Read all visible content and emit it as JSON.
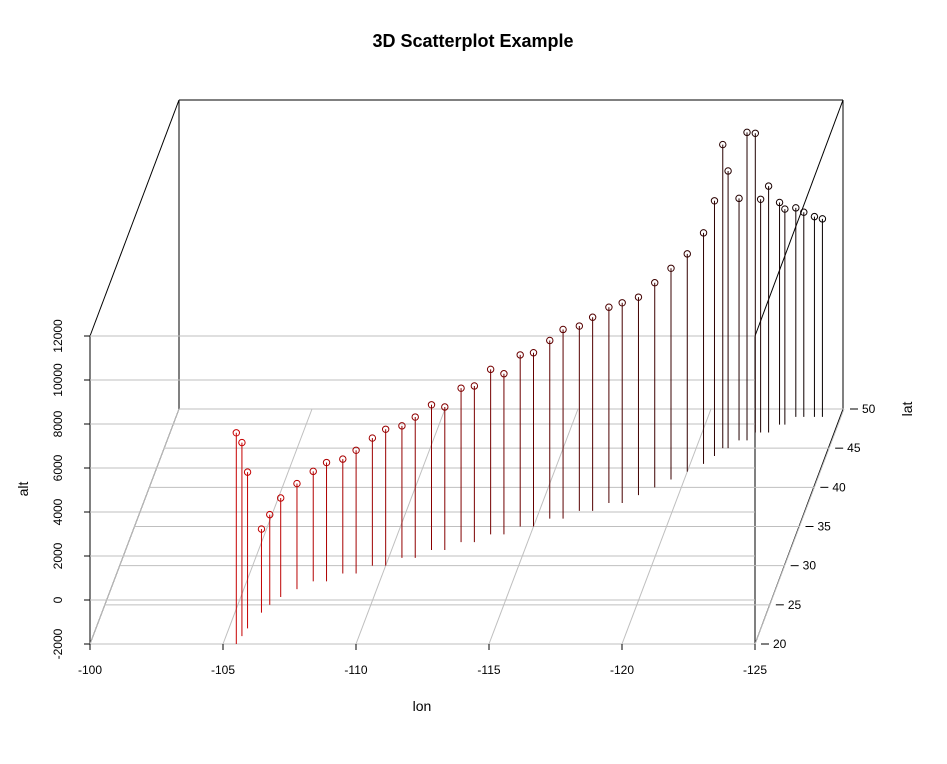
{
  "chart_data": {
    "type": "scatter",
    "title": "3D Scatterplot Example",
    "xlabel": "lon",
    "ylabel": "lat",
    "zlabel": "alt",
    "x_ticks": [
      -100,
      -105,
      -110,
      -115,
      -120,
      -125
    ],
    "y_ticks": [
      20,
      25,
      30,
      35,
      40,
      45,
      50
    ],
    "z_ticks": [
      -2000,
      0,
      2000,
      4000,
      6000,
      8000,
      10000,
      12000
    ],
    "x_range": [
      -100,
      -125
    ],
    "y_range": [
      20,
      50
    ],
    "z_range": [
      -2000,
      12000
    ],
    "grid": true,
    "drop_lines": true,
    "color_gradient": [
      "#ff0000",
      "#000000"
    ],
    "series": [
      {
        "points": [
          [
            -105.5,
            20,
            7600
          ],
          [
            -105.6,
            21,
            6800
          ],
          [
            -105.7,
            22,
            5100
          ],
          [
            -106.0,
            24,
            1800
          ],
          [
            -106.2,
            25,
            2100
          ],
          [
            -106.5,
            26,
            2500
          ],
          [
            -107.0,
            27,
            2800
          ],
          [
            -107.5,
            28,
            3000
          ],
          [
            -108.0,
            28,
            3400
          ],
          [
            -108.5,
            29,
            3200
          ],
          [
            -109.0,
            29,
            3600
          ],
          [
            -109.5,
            30,
            3800
          ],
          [
            -110.0,
            30,
            4200
          ],
          [
            -110.5,
            31,
            4000
          ],
          [
            -111.0,
            31,
            4400
          ],
          [
            -111.5,
            32,
            4600
          ],
          [
            -112.0,
            32,
            4500
          ],
          [
            -112.5,
            33,
            5000
          ],
          [
            -113.0,
            33,
            5100
          ],
          [
            -113.5,
            34,
            5500
          ],
          [
            -114.0,
            34,
            5300
          ],
          [
            -114.5,
            35,
            5800
          ],
          [
            -115.0,
            35,
            5900
          ],
          [
            -115.5,
            36,
            6100
          ],
          [
            -116.0,
            36,
            6600
          ],
          [
            -116.5,
            37,
            6400
          ],
          [
            -117.0,
            37,
            6800
          ],
          [
            -117.5,
            38,
            6900
          ],
          [
            -118.0,
            38,
            7100
          ],
          [
            -118.5,
            39,
            7000
          ],
          [
            -119.0,
            40,
            7300
          ],
          [
            -119.5,
            41,
            7600
          ],
          [
            -120.0,
            42,
            7900
          ],
          [
            -120.5,
            43,
            8500
          ],
          [
            -120.8,
            44,
            9600
          ],
          [
            -121.0,
            45,
            11800
          ],
          [
            -121.2,
            45,
            10600
          ],
          [
            -121.5,
            46,
            9000
          ],
          [
            -121.8,
            46,
            12000
          ],
          [
            -122.0,
            47,
            11600
          ],
          [
            -122.2,
            47,
            8600
          ],
          [
            -122.5,
            47,
            9200
          ],
          [
            -122.8,
            48,
            8100
          ],
          [
            -123.0,
            48,
            7800
          ],
          [
            -123.3,
            49,
            7500
          ],
          [
            -123.6,
            49,
            7300
          ],
          [
            -124.0,
            49,
            7100
          ],
          [
            -124.3,
            49,
            7000
          ]
        ]
      }
    ]
  }
}
